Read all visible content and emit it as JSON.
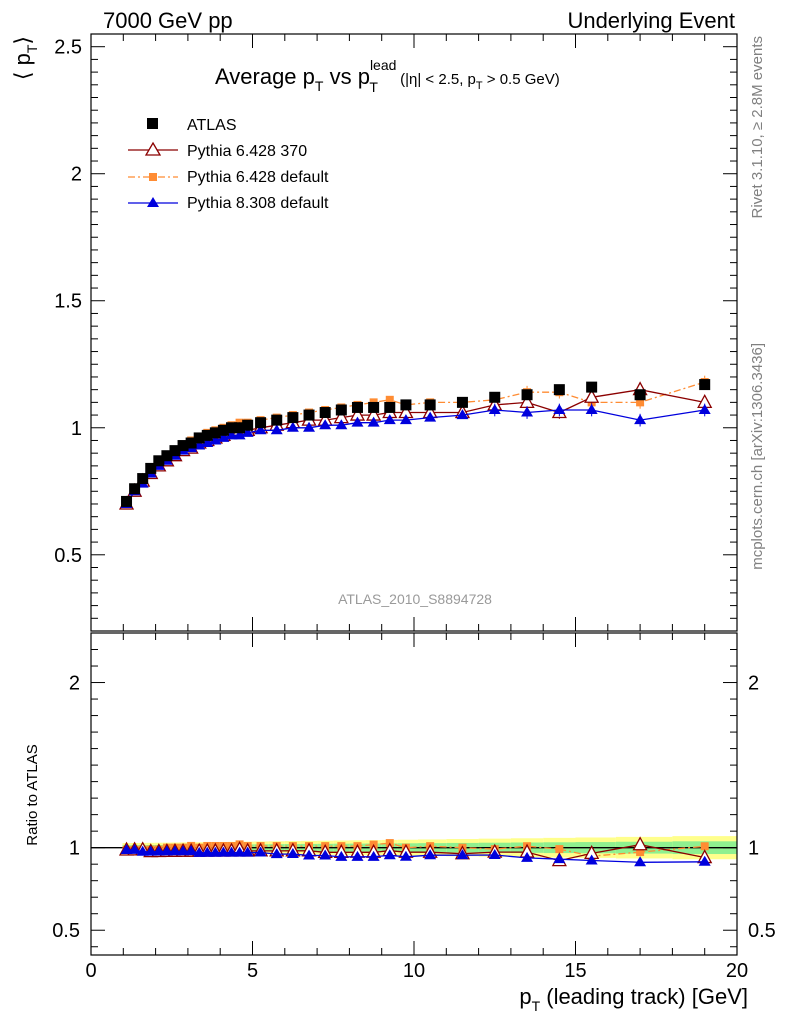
{
  "header": {
    "left": "7000 GeV pp",
    "right": "Underlying Event"
  },
  "side": {
    "rivet": "Rivet 3.1.10, ≥ 2.8M events",
    "mcplots": "mcplots.cern.ch [arXiv:1306.3436]"
  },
  "chart_data": {
    "type": "scatter",
    "title": {
      "main": "Average p",
      "sub1": "T",
      "mid": " vs p",
      "sup": "lead",
      "sub2": "T",
      "cut1": " (|η| < 2.5, p",
      "cut_sub": "T",
      "cut2": " > 0.5 GeV)"
    },
    "analysis_label": "ATLAS_2010_S8894728",
    "ylabel": {
      "open": "⟨ p",
      "sub": "T",
      "close": "⟩"
    },
    "xlabel": {
      "p": "p",
      "sub": "T",
      "rest": " (leading track) [GeV]"
    },
    "ratio_ylabel": "Ratio to ATLAS",
    "xlim": [
      0,
      20
    ],
    "ylim": [
      0.2,
      2.55
    ],
    "ratio_ylim": [
      0.35,
      2.3
    ],
    "x_ticks": [
      "0",
      "5",
      "10",
      "15",
      "20"
    ],
    "y_ticks": [
      "0.5",
      "1",
      "1.5",
      "2",
      "2.5"
    ],
    "ratio_y_ticks": [
      "0.5",
      "1",
      "2"
    ],
    "legend": [
      "ATLAS",
      "Pythia 6.428 370",
      "Pythia 6.428 default",
      "Pythia 8.308 default"
    ],
    "colors": {
      "atlas": "#000000",
      "p370": "#8b0000",
      "pdef": "#ff8c33",
      "p8": "#0000dd"
    },
    "x": [
      1.1,
      1.35,
      1.6,
      1.85,
      2.1,
      2.35,
      2.6,
      2.85,
      3.1,
      3.35,
      3.6,
      3.85,
      4.1,
      4.35,
      4.6,
      4.85,
      5.25,
      5.75,
      6.25,
      6.75,
      7.25,
      7.75,
      8.25,
      8.75,
      9.25,
      9.75,
      10.5,
      11.5,
      12.5,
      13.5,
      14.5,
      15.5,
      17.0,
      19.0
    ],
    "series": [
      {
        "name": "ATLAS",
        "values": [
          0.71,
          0.76,
          0.8,
          0.84,
          0.87,
          0.89,
          0.91,
          0.93,
          0.94,
          0.96,
          0.97,
          0.98,
          0.99,
          1.0,
          1.0,
          1.01,
          1.02,
          1.03,
          1.04,
          1.05,
          1.06,
          1.07,
          1.08,
          1.08,
          1.08,
          1.09,
          1.09,
          1.1,
          1.12,
          1.13,
          1.15,
          1.16,
          1.13,
          1.17
        ]
      },
      {
        "name": "Pythia 6.428 370",
        "values": [
          0.7,
          0.75,
          0.79,
          0.82,
          0.85,
          0.87,
          0.89,
          0.91,
          0.92,
          0.94,
          0.95,
          0.96,
          0.97,
          0.98,
          0.99,
          0.99,
          1.0,
          1.01,
          1.02,
          1.03,
          1.03,
          1.04,
          1.05,
          1.05,
          1.06,
          1.06,
          1.06,
          1.06,
          1.09,
          1.1,
          1.06,
          1.12,
          1.15,
          1.1
        ]
      },
      {
        "name": "Pythia 6.428 default",
        "values": [
          0.7,
          0.75,
          0.79,
          0.83,
          0.86,
          0.89,
          0.91,
          0.93,
          0.95,
          0.96,
          0.98,
          0.99,
          1.0,
          1.01,
          1.02,
          1.02,
          1.03,
          1.04,
          1.05,
          1.06,
          1.07,
          1.08,
          1.09,
          1.1,
          1.11,
          1.09,
          1.1,
          1.1,
          1.11,
          1.14,
          1.14,
          1.1,
          1.1,
          1.18
        ]
      },
      {
        "name": "Pythia 8.308 default",
        "values": [
          0.7,
          0.75,
          0.78,
          0.82,
          0.85,
          0.87,
          0.89,
          0.91,
          0.92,
          0.93,
          0.94,
          0.95,
          0.96,
          0.97,
          0.97,
          0.98,
          0.99,
          0.99,
          1.0,
          1.0,
          1.01,
          1.01,
          1.02,
          1.02,
          1.03,
          1.03,
          1.04,
          1.05,
          1.07,
          1.06,
          1.07,
          1.07,
          1.03,
          1.07
        ]
      }
    ]
  }
}
